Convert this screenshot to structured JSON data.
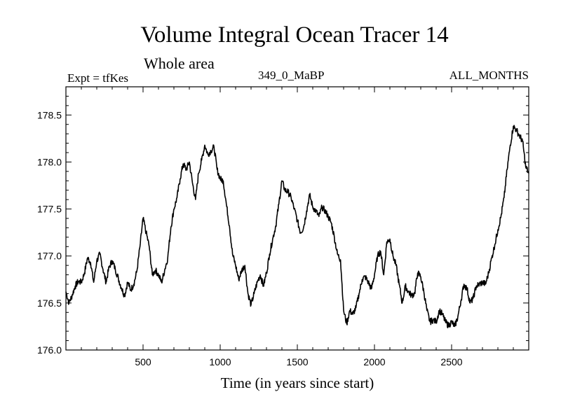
{
  "header": {
    "title": "Volume Integral Ocean Tracer 14",
    "subtitle": "Whole area",
    "expt": "Expt = tfKes",
    "run": "349_0_MaBP",
    "months": "ALL_MONTHS"
  },
  "chart_data": {
    "type": "line",
    "title": "Volume Integral Ocean Tracer 14",
    "subtitle": "Whole area",
    "xlabel": "Time (in years since start)",
    "ylabel": "",
    "xlim": [
      0,
      3000
    ],
    "ylim": [
      176.0,
      178.8
    ],
    "xticks": [
      500,
      1000,
      1500,
      2000,
      2500
    ],
    "yticks": [
      176.0,
      176.5,
      177.0,
      177.5,
      178.0,
      178.5
    ],
    "ytick_labels": [
      "176.0",
      "176.5",
      "177.0",
      "177.5",
      "178.0",
      "178.5"
    ],
    "grid": false,
    "series": [
      {
        "color": "#000000",
        "x": [
          0,
          20,
          40,
          60,
          80,
          100,
          120,
          140,
          160,
          180,
          200,
          220,
          240,
          260,
          280,
          300,
          320,
          340,
          360,
          380,
          400,
          420,
          440,
          460,
          480,
          500,
          520,
          540,
          560,
          580,
          600,
          620,
          640,
          660,
          680,
          700,
          720,
          740,
          760,
          780,
          800,
          820,
          840,
          860,
          880,
          900,
          920,
          940,
          960,
          980,
          1000,
          1020,
          1040,
          1060,
          1080,
          1100,
          1120,
          1140,
          1160,
          1180,
          1200,
          1220,
          1240,
          1260,
          1280,
          1300,
          1320,
          1340,
          1360,
          1380,
          1400,
          1420,
          1440,
          1460,
          1480,
          1500,
          1520,
          1540,
          1560,
          1580,
          1600,
          1620,
          1640,
          1660,
          1680,
          1700,
          1720,
          1740,
          1760,
          1780,
          1800,
          1820,
          1840,
          1860,
          1880,
          1900,
          1920,
          1940,
          1960,
          1980,
          2000,
          2020,
          2040,
          2060,
          2080,
          2100,
          2120,
          2140,
          2160,
          2180,
          2200,
          2220,
          2240,
          2260,
          2280,
          2300,
          2320,
          2340,
          2360,
          2380,
          2400,
          2420,
          2440,
          2460,
          2480,
          2500,
          2520,
          2540,
          2560,
          2580,
          2600,
          2620,
          2640,
          2660,
          2680,
          2700,
          2720,
          2740,
          2760,
          2780,
          2800,
          2820,
          2840,
          2860,
          2880,
          2900,
          2920,
          2940,
          2960,
          2980,
          3000
        ],
        "y": [
          176.62,
          176.5,
          176.58,
          176.68,
          176.73,
          176.72,
          176.82,
          176.98,
          176.93,
          176.72,
          176.95,
          177.02,
          176.86,
          176.72,
          176.88,
          176.95,
          176.86,
          176.76,
          176.66,
          176.58,
          176.72,
          176.64,
          176.7,
          176.84,
          177.1,
          177.4,
          177.25,
          177.1,
          176.8,
          176.85,
          176.8,
          176.72,
          176.85,
          176.98,
          177.3,
          177.5,
          177.62,
          177.82,
          177.98,
          177.92,
          178.0,
          177.78,
          177.6,
          177.88,
          178.02,
          178.18,
          178.08,
          178.12,
          178.16,
          177.92,
          177.82,
          177.8,
          177.55,
          177.32,
          177.02,
          176.9,
          176.75,
          176.85,
          176.9,
          176.6,
          176.48,
          176.6,
          176.72,
          176.8,
          176.68,
          176.82,
          177.02,
          177.18,
          177.32,
          177.55,
          177.8,
          177.7,
          177.68,
          177.62,
          177.5,
          177.38,
          177.25,
          177.3,
          177.48,
          177.65,
          177.52,
          177.48,
          177.42,
          177.52,
          177.48,
          177.42,
          177.35,
          177.2,
          177.02,
          176.96,
          176.42,
          176.28,
          176.42,
          176.38,
          176.45,
          176.6,
          176.75,
          176.78,
          176.72,
          176.65,
          176.8,
          177.0,
          177.05,
          176.8,
          177.15,
          177.18,
          177.0,
          176.9,
          176.7,
          176.5,
          176.68,
          176.62,
          176.58,
          176.6,
          176.82,
          176.78,
          176.62,
          176.42,
          176.3,
          176.32,
          176.3,
          176.42,
          176.38,
          176.3,
          176.26,
          176.3,
          176.25,
          176.35,
          176.52,
          176.7,
          176.65,
          176.5,
          176.55,
          176.68,
          176.7,
          176.72,
          176.7,
          176.82,
          176.98,
          177.12,
          177.28,
          177.42,
          177.62,
          177.92,
          178.18,
          178.38,
          178.34,
          178.28,
          178.22,
          177.95,
          177.88
        ]
      }
    ]
  }
}
